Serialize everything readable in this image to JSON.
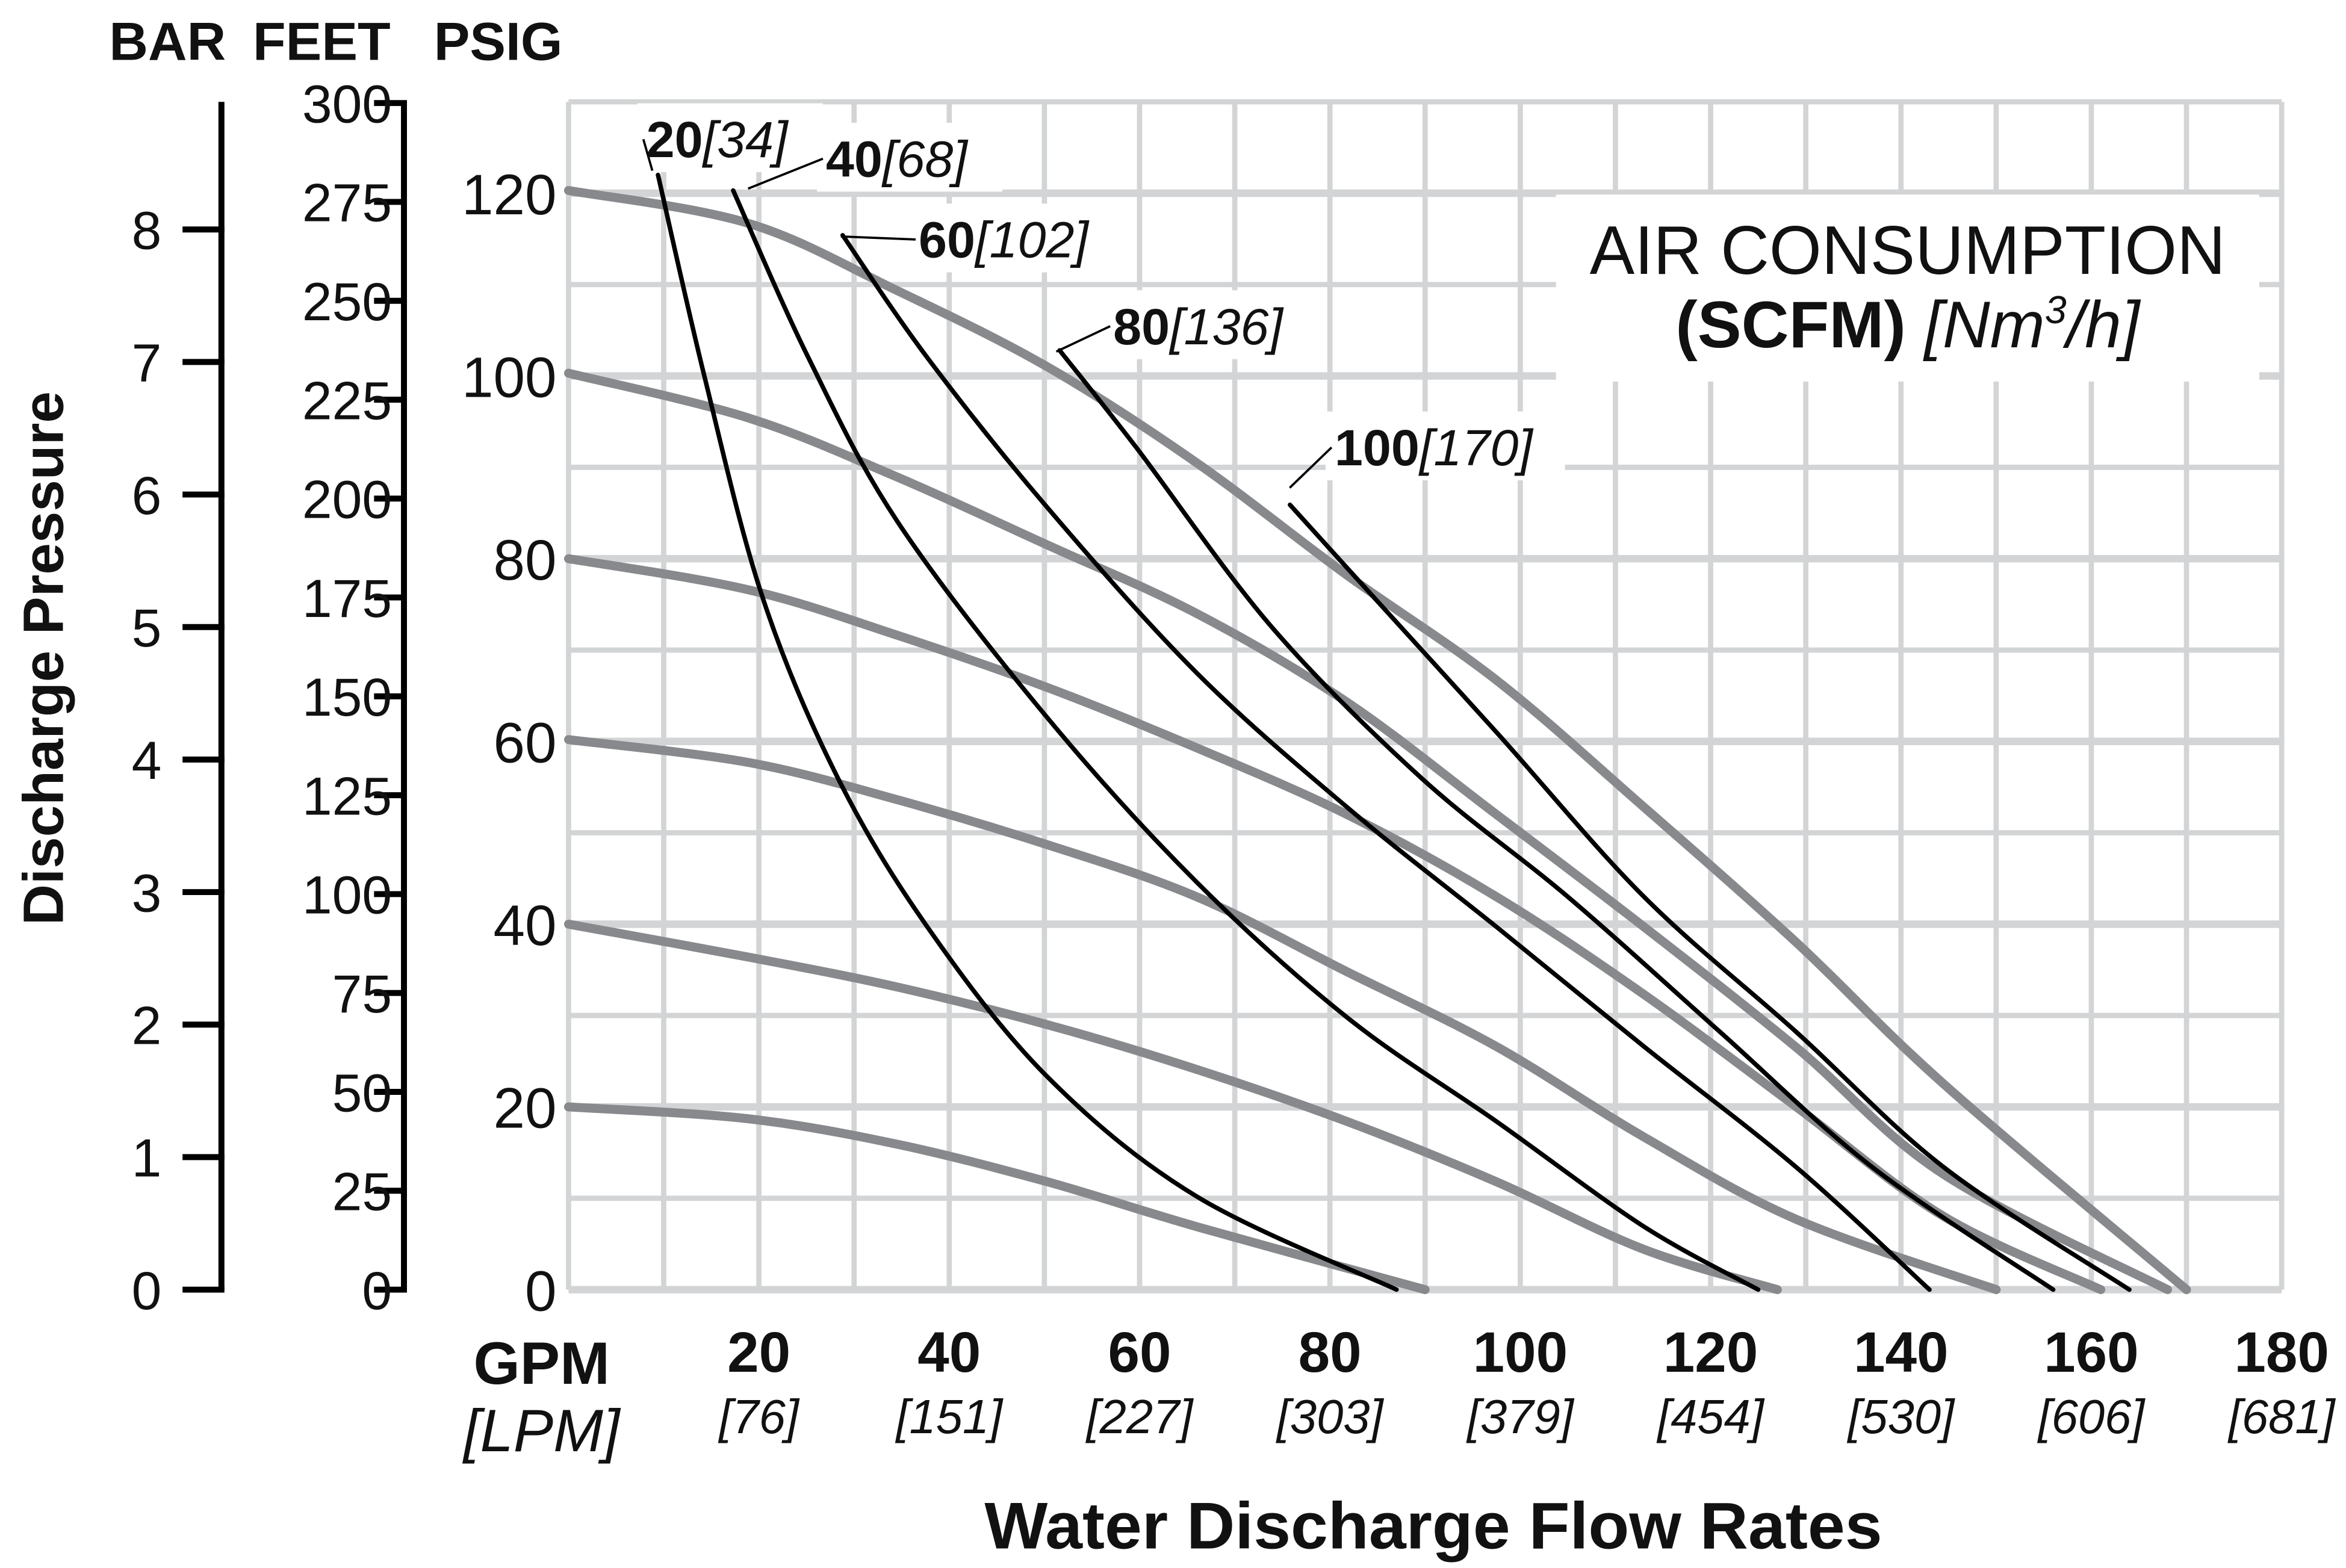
{
  "chart_data": {
    "type": "line",
    "title": "AIR CONSUMPTION",
    "title_line2_bold": "(SCFM)",
    "title_line2_italic_prefix": "[Nm",
    "title_line2_sup": "3",
    "title_line2_italic_suffix": "/h]",
    "xlabel": "Water Discharge Flow Rates",
    "x_unit_primary": "GPM",
    "x_unit_secondary": "[LPM]",
    "ylabel": "Discharge Pressure",
    "y_axis_headers": [
      "BAR",
      "FEET",
      "PSIG"
    ],
    "xlim": [
      0,
      180
    ],
    "ylim_psig": [
      0,
      130
    ],
    "grid": true,
    "x_ticks": [
      {
        "gpm": 20,
        "gpm_label": "20",
        "lpm_label": "[76]"
      },
      {
        "gpm": 40,
        "gpm_label": "40",
        "lpm_label": "[151]"
      },
      {
        "gpm": 60,
        "gpm_label": "60",
        "lpm_label": "[227]"
      },
      {
        "gpm": 80,
        "gpm_label": "80",
        "lpm_label": "[303]"
      },
      {
        "gpm": 100,
        "gpm_label": "100",
        "lpm_label": "[379]"
      },
      {
        "gpm": 120,
        "gpm_label": "120",
        "lpm_label": "[454]"
      },
      {
        "gpm": 140,
        "gpm_label": "140",
        "lpm_label": "[530]"
      },
      {
        "gpm": 160,
        "gpm_label": "160",
        "lpm_label": "[606]"
      },
      {
        "gpm": 180,
        "gpm_label": "180",
        "lpm_label": "[681]"
      }
    ],
    "psig_ticks": [
      "0",
      "20",
      "40",
      "60",
      "80",
      "100",
      "120"
    ],
    "feet_ticks": [
      "0",
      "25",
      "50",
      "75",
      "100",
      "125",
      "150",
      "175",
      "200",
      "225",
      "250",
      "275",
      "300"
    ],
    "bar_ticks": [
      "0",
      "1",
      "2",
      "3",
      "4",
      "5",
      "6",
      "7",
      "8"
    ],
    "colors": {
      "pressure_curves": "#87898c",
      "air_curves": "#000000",
      "grid": "#d2d4d5"
    },
    "pressure_curves": [
      {
        "psig": 120,
        "points": [
          [
            0,
            120.3
          ],
          [
            18.9,
            116.7
          ],
          [
            34.6,
            109.3
          ],
          [
            50.3,
            101
          ],
          [
            66,
            90.5
          ],
          [
            81.8,
            78.2
          ],
          [
            97.5,
            66.7
          ],
          [
            113,
            52.8
          ],
          [
            129,
            38
          ],
          [
            144.5,
            22.5
          ],
          [
            170,
            0
          ]
        ]
      },
      {
        "psig": 100,
        "points": [
          [
            0,
            100.3
          ],
          [
            18.9,
            95.4
          ],
          [
            34.6,
            88.9
          ],
          [
            50.3,
            81.5
          ],
          [
            66,
            74
          ],
          [
            81.8,
            64.3
          ],
          [
            97.5,
            52
          ],
          [
            113,
            39.7
          ],
          [
            129,
            26.5
          ],
          [
            144.5,
            12.6
          ],
          [
            168,
            0
          ]
        ]
      },
      {
        "psig": 80,
        "points": [
          [
            0,
            80
          ],
          [
            18.9,
            76.6
          ],
          [
            34.6,
            71.6
          ],
          [
            50.3,
            65.9
          ],
          [
            66,
            59.3
          ],
          [
            81.8,
            52
          ],
          [
            97.5,
            43
          ],
          [
            113,
            32.3
          ],
          [
            129,
            20
          ],
          [
            144.5,
            8
          ],
          [
            161,
            0
          ]
        ]
      },
      {
        "psig": 60,
        "points": [
          [
            0,
            60.2
          ],
          [
            18.9,
            57.7
          ],
          [
            34.6,
            53.6
          ],
          [
            50.3,
            48.7
          ],
          [
            66,
            43
          ],
          [
            81.8,
            34.8
          ],
          [
            97.5,
            26.6
          ],
          [
            113,
            16.7
          ],
          [
            129,
            7.7
          ],
          [
            150,
            0
          ]
        ]
      },
      {
        "psig": 40,
        "points": [
          [
            0,
            40
          ],
          [
            18.9,
            36.4
          ],
          [
            34.6,
            33.1
          ],
          [
            50.3,
            29
          ],
          [
            66,
            24.1
          ],
          [
            81.8,
            18.4
          ],
          [
            97.5,
            11.8
          ],
          [
            113,
            4.4
          ],
          [
            127,
            0
          ]
        ]
      },
      {
        "psig": 20,
        "points": [
          [
            0,
            20
          ],
          [
            18.9,
            18.7
          ],
          [
            34.6,
            15.9
          ],
          [
            50.3,
            11.8
          ],
          [
            66,
            6.9
          ],
          [
            90,
            0
          ]
        ]
      }
    ],
    "air_curves": [
      {
        "scfm": "20",
        "nm3h": "[34]",
        "points": [
          [
            9.4,
            122
          ],
          [
            14.2,
            100.3
          ],
          [
            20.4,
            75.7
          ],
          [
            28.3,
            56
          ],
          [
            37.7,
            39.7
          ],
          [
            50.3,
            23.3
          ],
          [
            66,
            10.2
          ],
          [
            87,
            0
          ]
        ]
      },
      {
        "scfm": "40",
        "nm3h": "[68]",
        "points": [
          [
            17.3,
            120.3
          ],
          [
            25.2,
            102
          ],
          [
            34.6,
            84
          ],
          [
            50.3,
            62.6
          ],
          [
            66,
            44.6
          ],
          [
            81.8,
            29.8
          ],
          [
            97.5,
            18.4
          ],
          [
            113,
            6.9
          ],
          [
            125,
            0
          ]
        ]
      },
      {
        "scfm": "60",
        "nm3h": "[102]",
        "points": [
          [
            28.8,
            115.4
          ],
          [
            37.7,
            102
          ],
          [
            50.3,
            85.6
          ],
          [
            66,
            67.5
          ],
          [
            81.8,
            52.8
          ],
          [
            97.5,
            39.7
          ],
          [
            113,
            26.6
          ],
          [
            129,
            13.4
          ],
          [
            143,
            0
          ]
        ]
      },
      {
        "scfm": "80",
        "nm3h": "[136]",
        "points": [
          [
            51.6,
            102.8
          ],
          [
            59.7,
            92.1
          ],
          [
            73.9,
            72.5
          ],
          [
            89.6,
            56
          ],
          [
            105,
            43
          ],
          [
            121,
            28.2
          ],
          [
            137,
            13.4
          ],
          [
            156,
            0
          ]
        ]
      },
      {
        "scfm": "100",
        "nm3h": "[170]",
        "points": [
          [
            75.8,
            85.9
          ],
          [
            81.8,
            79
          ],
          [
            97.5,
            61
          ],
          [
            113,
            43
          ],
          [
            129,
            28.2
          ],
          [
            144.5,
            13.4
          ],
          [
            164,
            0
          ]
        ]
      }
    ]
  }
}
